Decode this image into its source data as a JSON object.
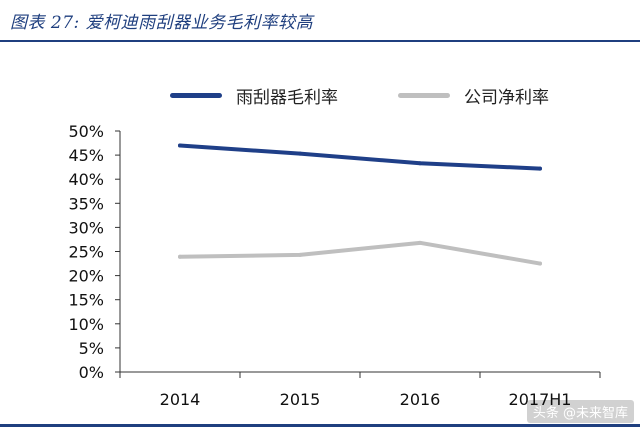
{
  "chart_data": {
    "type": "line",
    "title": "图表 27:  爱柯迪雨刮器业务毛利率较高",
    "categories": [
      "2014",
      "2015",
      "2016",
      "2017H1"
    ],
    "series": [
      {
        "name": "雨刮器毛利率",
        "values": [
          0.47,
          0.453,
          0.433,
          0.422
        ],
        "color": "#1f3f88"
      },
      {
        "name": "公司净利率",
        "values": [
          0.239,
          0.243,
          0.268,
          0.225
        ],
        "color": "#bfbfbf"
      }
    ],
    "y_ticks": [
      "0%",
      "5%",
      "10%",
      "15%",
      "20%",
      "25%",
      "30%",
      "35%",
      "40%",
      "45%",
      "50%"
    ],
    "ylim": [
      0,
      0.5
    ],
    "xlabel": "",
    "ylabel": "",
    "legend_position": "top"
  },
  "watermark": "头条 @未来智库"
}
